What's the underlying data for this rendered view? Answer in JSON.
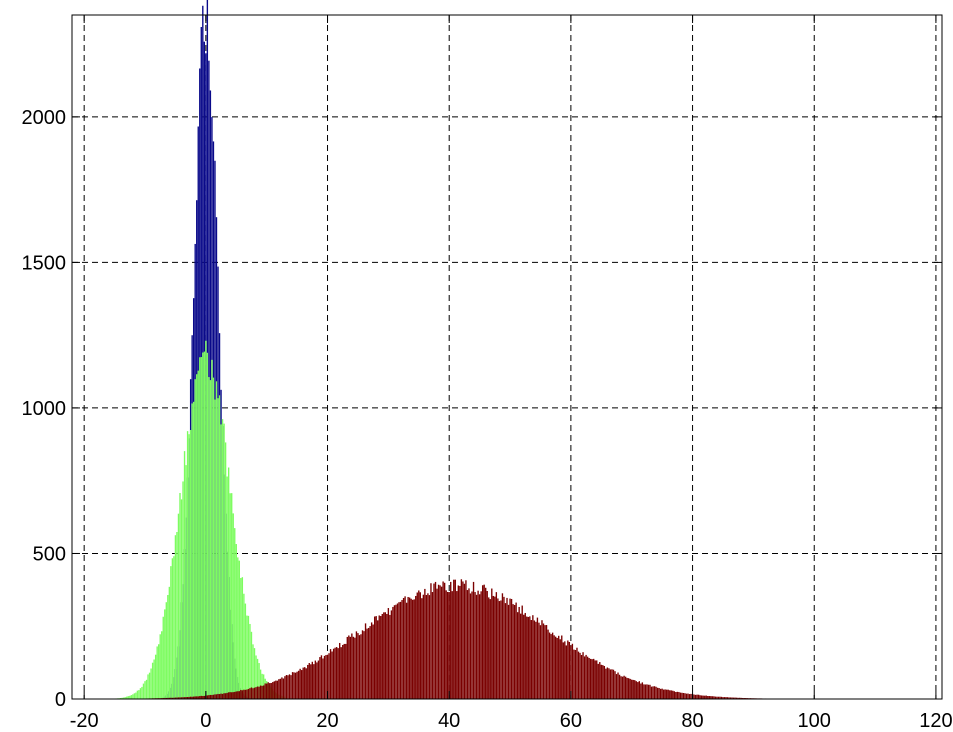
{
  "chart_data": {
    "type": "bar",
    "subtype": "overlaid histogram",
    "title": "",
    "xlabel": "",
    "ylabel": "",
    "xlim": [
      -22,
      121
    ],
    "ylim": [
      0,
      2350
    ],
    "xticks": [
      -20,
      0,
      20,
      40,
      60,
      80,
      100,
      120
    ],
    "yticks": [
      0,
      500,
      1000,
      1500,
      2000
    ],
    "grid": true,
    "grid_style": "dashed",
    "legend": "none",
    "bin_width": 0.25,
    "series": [
      {
        "color": "#0a0a8a",
        "shape": "gaussian",
        "mean": 0,
        "std": 2.0,
        "peak_count": 2360,
        "support": [
          -7,
          7
        ]
      },
      {
        "color": "#7dfc60",
        "shape": "gaussian",
        "mean": 0,
        "std": 4.1,
        "peak_count": 1170,
        "support": [
          -20,
          13
        ]
      },
      {
        "color": "#7a0000",
        "shape": "gaussian",
        "mean": 41,
        "std": 15.5,
        "peak_count": 390,
        "support": [
          -22,
          121
        ]
      }
    ]
  }
}
